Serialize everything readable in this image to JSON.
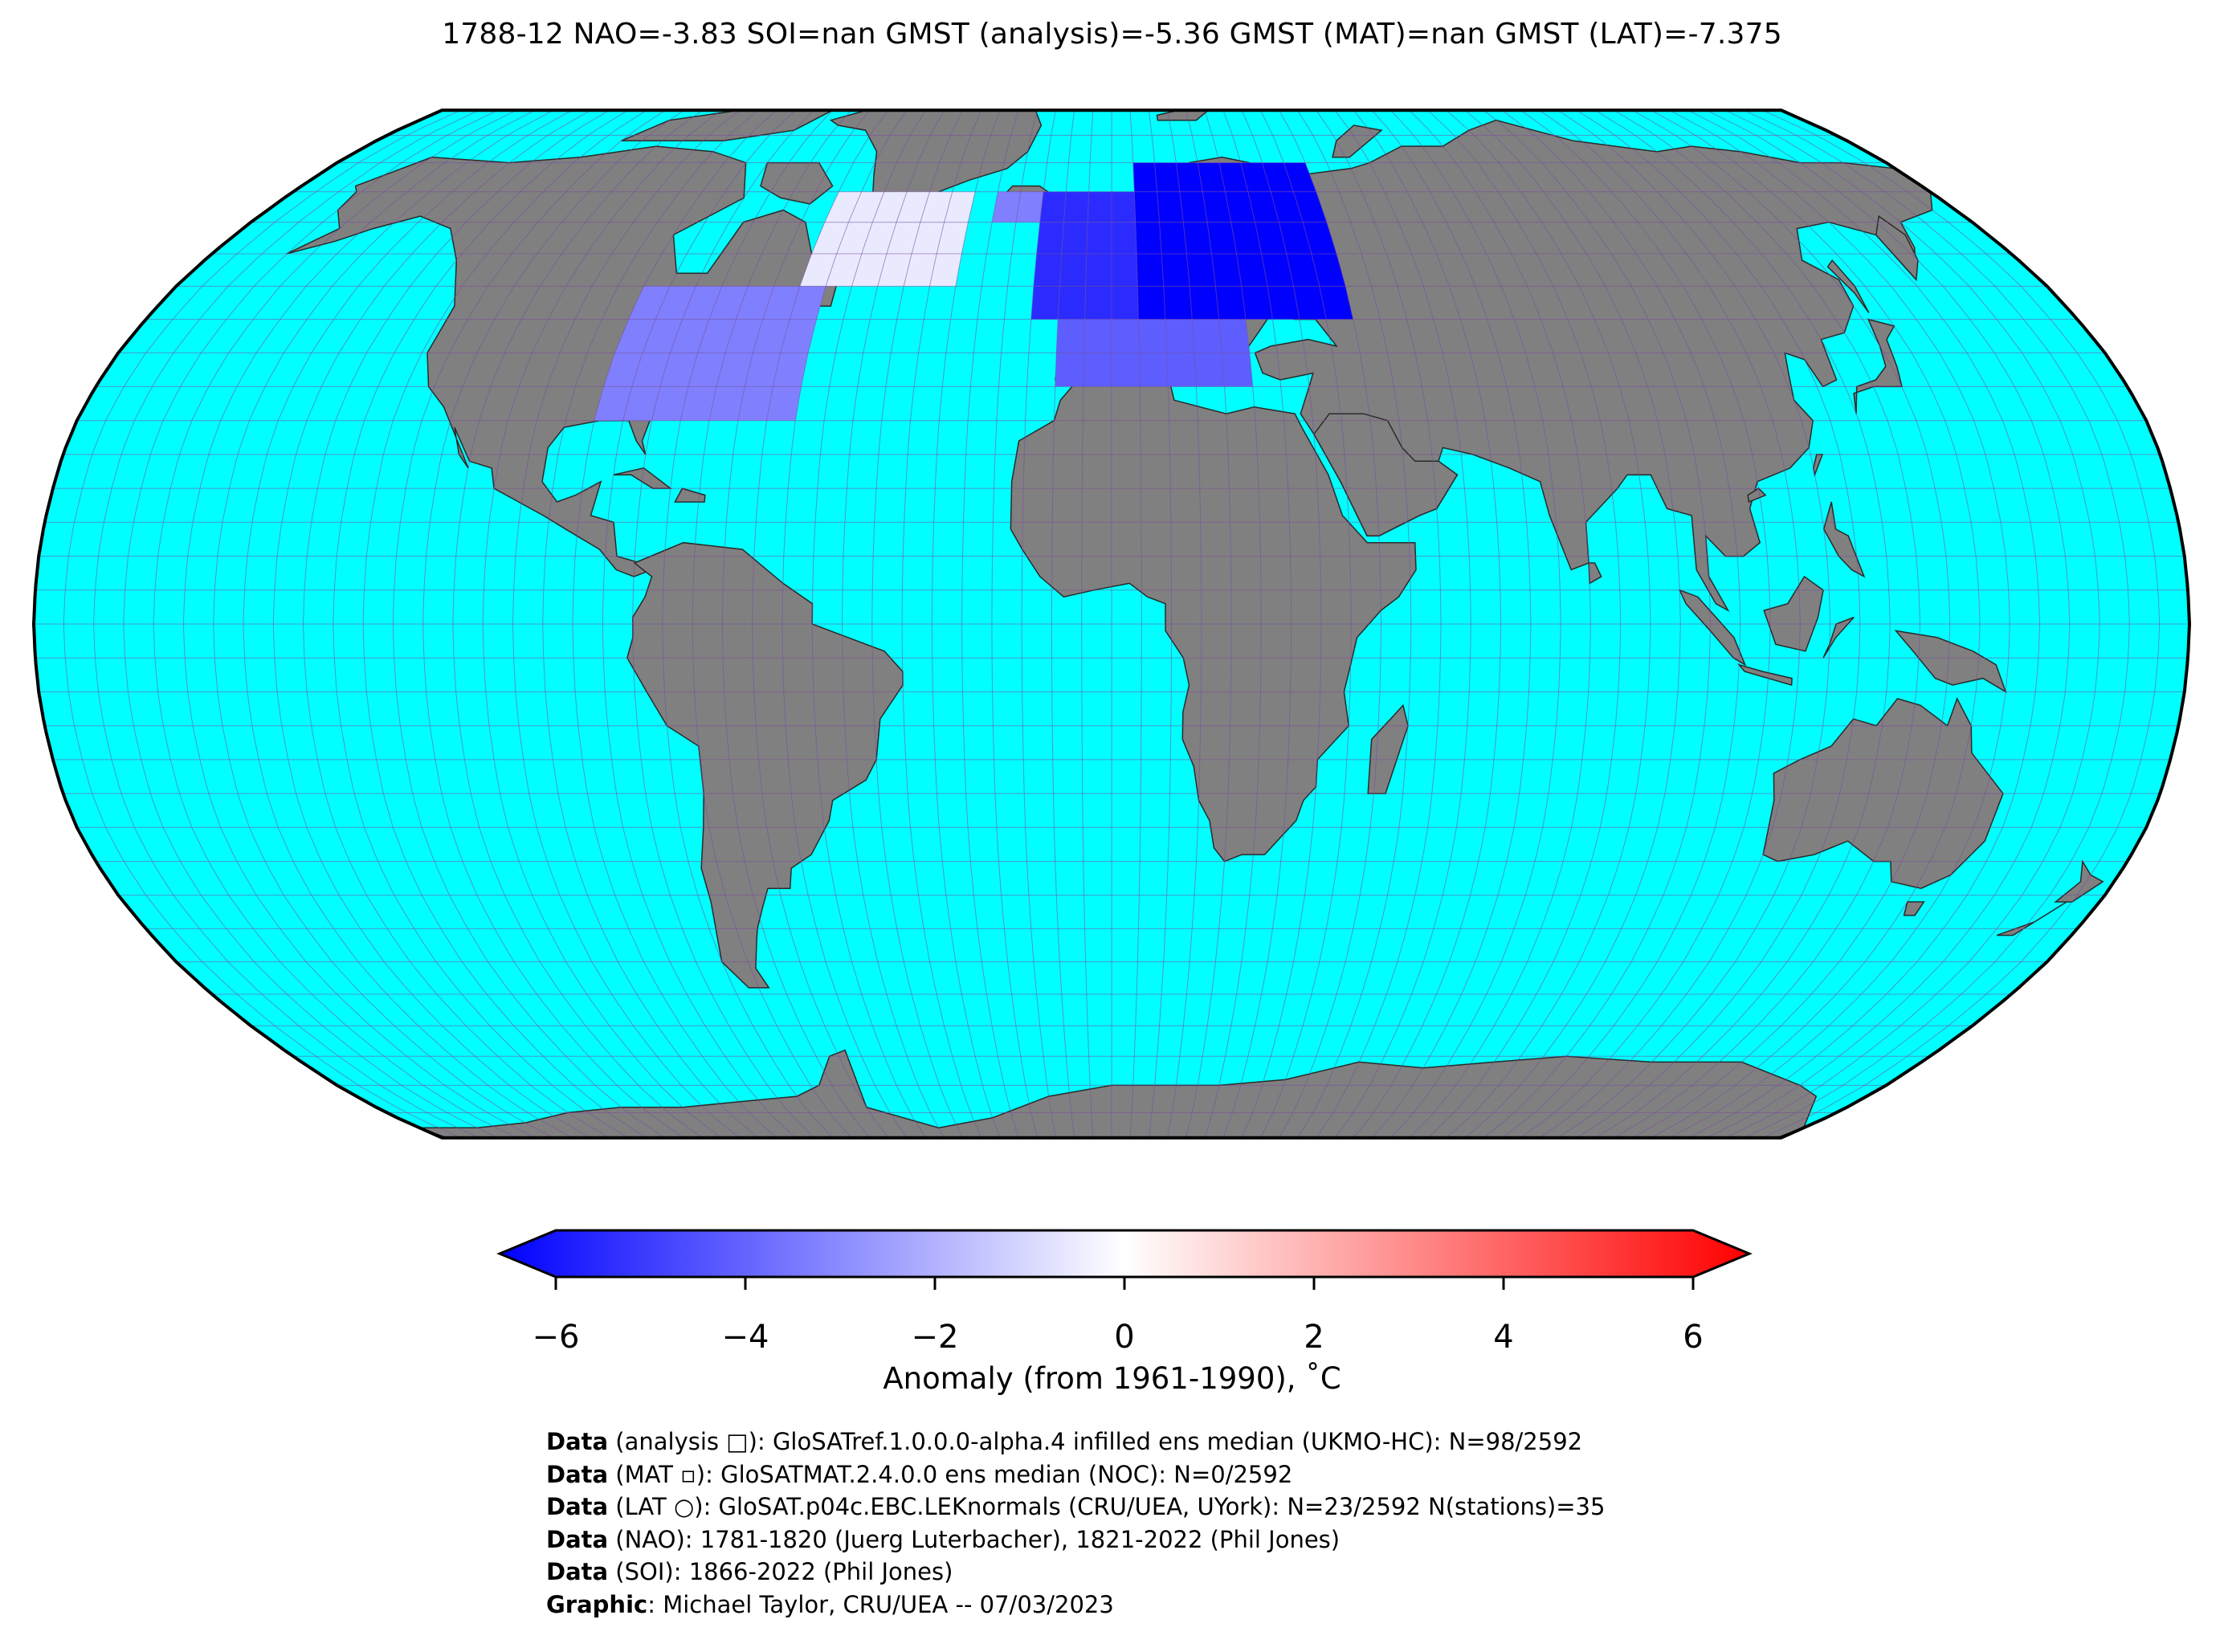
{
  "title": "1788-12 NAO=-3.83 SOI=nan GMST (analysis)=-5.36 GMST (MAT)=nan GMST (LAT)=-7.375",
  "map": {
    "projection": "Robinson",
    "ocean_color": "#00ffff",
    "land_color": "#808080",
    "gridline_color": "#7a4a9c",
    "grid_spacing_deg": 5,
    "anomaly_cells": [
      {
        "region": "Greenland / Labrador Sea",
        "lat": [
          50,
          65
        ],
        "lon": [
          -60,
          -30
        ],
        "anomaly_c": -0.5
      },
      {
        "region": "Eastern North America",
        "lat": [
          30,
          50
        ],
        "lon": [
          -90,
          -55
        ],
        "anomaly_c": -3.0
      },
      {
        "region": "Iceland",
        "lat": [
          60,
          65
        ],
        "lon": [
          -25,
          -15
        ],
        "anomaly_c": -3.0
      },
      {
        "region": "Western Europe",
        "lat": [
          45,
          65
        ],
        "lon": [
          -15,
          5
        ],
        "anomaly_c": -5.0
      },
      {
        "region": "Central & Eastern Europe",
        "lat": [
          45,
          70
        ],
        "lon": [
          5,
          45
        ],
        "anomaly_c": -6.0
      },
      {
        "region": "Mediterranean",
        "lat": [
          35,
          45
        ],
        "lon": [
          -10,
          25
        ],
        "anomaly_c": -3.8
      }
    ]
  },
  "colorbar": {
    "min": -6,
    "max": 6,
    "ticks": [
      "−6",
      "−4",
      "−2",
      "0",
      "2",
      "4",
      "6"
    ],
    "tick_values": [
      -6,
      -4,
      -2,
      0,
      2,
      4,
      6
    ],
    "colors": [
      "#0000ff",
      "#ffffff",
      "#ff0000"
    ],
    "label": "Anomaly (from 1961-1990), ˚C"
  },
  "credits": [
    {
      "key": "Data",
      "text": " (analysis □): GloSATref.1.0.0.0-alpha.4 infilled ens median (UKMO-HC): N=98/2592"
    },
    {
      "key": "Data",
      "text": " (MAT ▫): GloSATMAT.2.4.0.0 ens median (NOC): N=0/2592"
    },
    {
      "key": "Data",
      "text": " (LAT ○): GloSAT.p04c.EBC.LEKnormals (CRU/UEA, UYork): N=23/2592 N(stations)=35"
    },
    {
      "key": "Data",
      "text": " (NAO): 1781-1820 (Juerg Luterbacher), 1821-2022 (Phil Jones)"
    },
    {
      "key": "Data",
      "text": " (SOI): 1866-2022 (Phil Jones)"
    },
    {
      "key": "Graphic",
      "text": ": Michael Taylor, CRU/UEA -- 07/03/2023"
    }
  ]
}
